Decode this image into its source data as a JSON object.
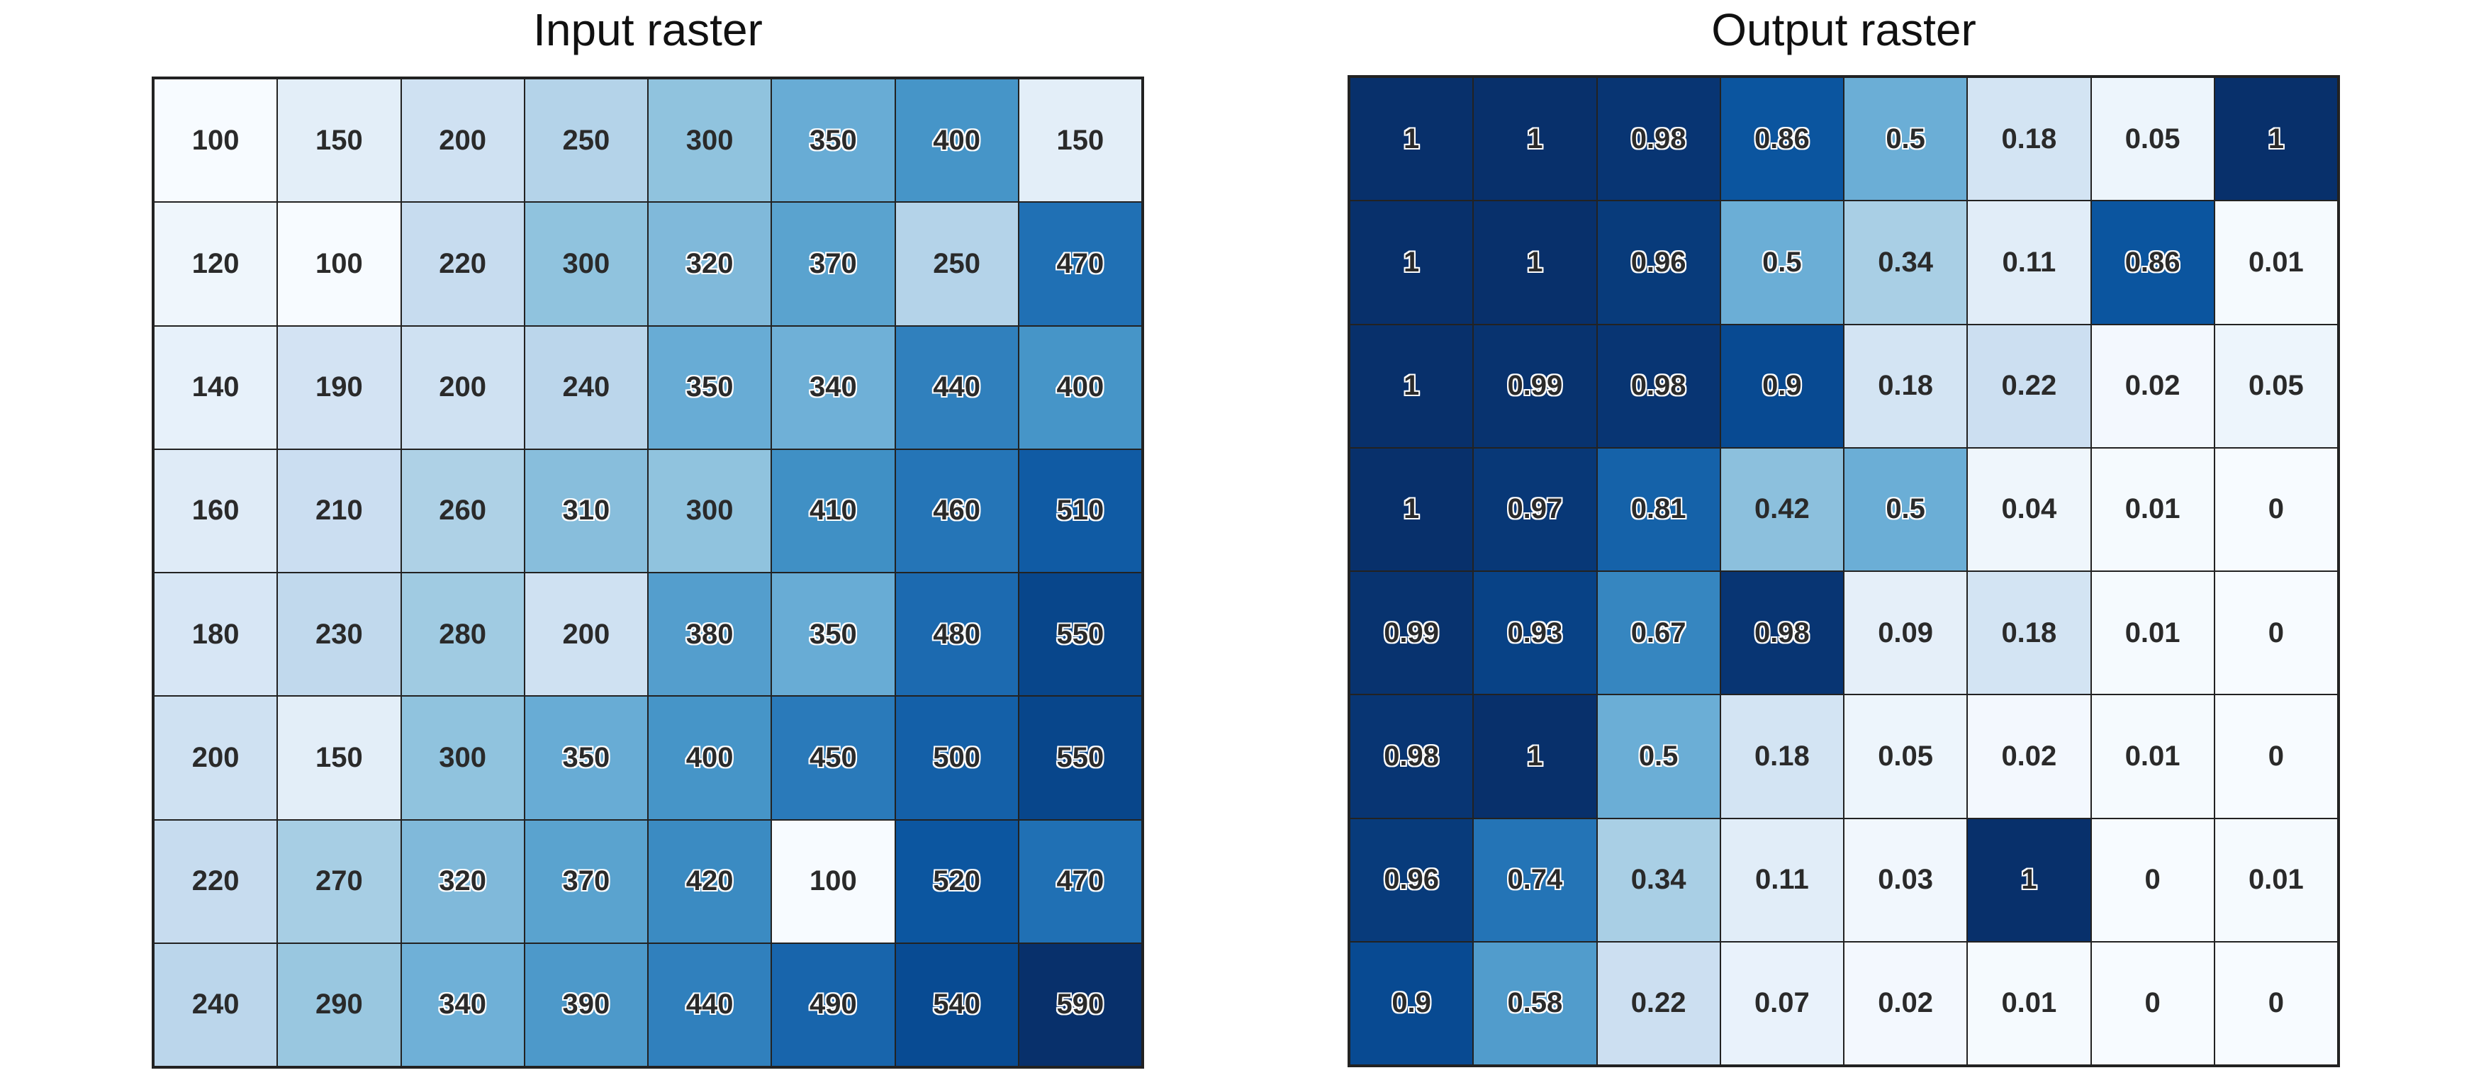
{
  "chart_data": [
    {
      "type": "heatmap",
      "title": "Input raster",
      "colormap": "Blues",
      "vmin": 100,
      "vmax": 590,
      "rows": 8,
      "cols": 8,
      "values": [
        [
          100,
          150,
          200,
          250,
          300,
          350,
          400,
          150
        ],
        [
          120,
          100,
          220,
          300,
          320,
          370,
          250,
          470
        ],
        [
          140,
          190,
          200,
          240,
          350,
          340,
          440,
          400
        ],
        [
          160,
          210,
          260,
          310,
          300,
          410,
          460,
          510
        ],
        [
          180,
          230,
          280,
          200,
          380,
          350,
          480,
          550
        ],
        [
          200,
          150,
          300,
          350,
          400,
          450,
          500,
          550
        ],
        [
          220,
          270,
          320,
          370,
          420,
          100,
          520,
          470
        ],
        [
          240,
          290,
          340,
          390,
          440,
          490,
          540,
          590
        ]
      ]
    },
    {
      "type": "heatmap",
      "title": "Output raster",
      "colormap": "Blues",
      "vmin": 0,
      "vmax": 1,
      "rows": 8,
      "cols": 8,
      "values": [
        [
          1,
          1,
          0.98,
          0.86,
          0.5,
          0.18,
          0.05,
          1
        ],
        [
          1,
          1,
          0.96,
          0.5,
          0.34,
          0.11,
          0.86,
          0.01
        ],
        [
          1,
          0.99,
          0.98,
          0.9,
          0.18,
          0.22,
          0.02,
          0.05
        ],
        [
          1,
          0.97,
          0.81,
          0.42,
          0.5,
          0.04,
          0.01,
          0
        ],
        [
          0.99,
          0.93,
          0.67,
          0.98,
          0.09,
          0.18,
          0.01,
          0
        ],
        [
          0.98,
          1,
          0.5,
          0.18,
          0.05,
          0.02,
          0.01,
          0
        ],
        [
          0.96,
          0.74,
          0.34,
          0.11,
          0.03,
          1,
          0,
          0.01
        ],
        [
          0.9,
          0.58,
          0.22,
          0.07,
          0.02,
          0.01,
          0,
          0
        ]
      ]
    }
  ]
}
